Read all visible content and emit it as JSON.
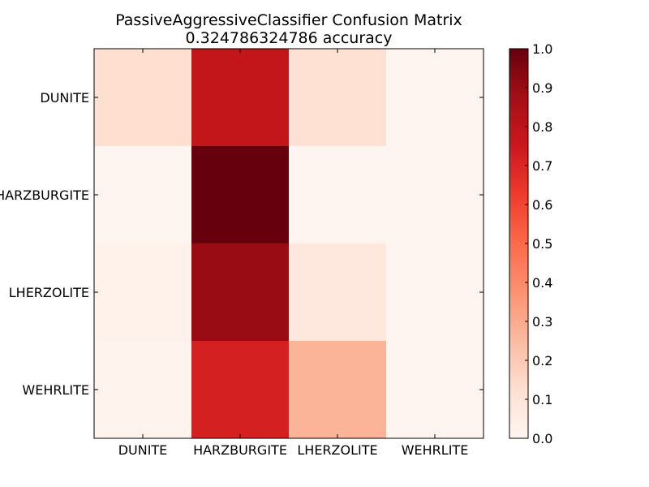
{
  "chart_data": {
    "type": "heatmap",
    "title": "PassiveAggressiveClassifier Confusion Matrix",
    "subtitle": "0.324786324786 accuracy",
    "x_categories": [
      "DUNITE",
      "HARZBURGITE",
      "LHERZOLITE",
      "WEHRLITE"
    ],
    "y_categories": [
      "DUNITE",
      "HARZBURGITE",
      "LHERZOLITE",
      "WEHRLITE"
    ],
    "values": [
      [
        0.13,
        0.78,
        0.12,
        0.0
      ],
      [
        0.0,
        1.0,
        0.0,
        0.0
      ],
      [
        0.02,
        0.9,
        0.08,
        0.0
      ],
      [
        0.01,
        0.72,
        0.27,
        0.0
      ]
    ],
    "colorbar": {
      "range": [
        0.0,
        1.0
      ],
      "ticks": [
        "0.0",
        "0.1",
        "0.2",
        "0.3",
        "0.4",
        "0.5",
        "0.6",
        "0.7",
        "0.8",
        "0.9",
        "1.0"
      ]
    },
    "colormap": "Reds",
    "colormap_stops": [
      "#fff5f0",
      "#fee0d2",
      "#fcbba1",
      "#fc9272",
      "#fb6a4a",
      "#ef3b2c",
      "#cb181d",
      "#a50f15",
      "#67000d"
    ],
    "grid": false
  }
}
